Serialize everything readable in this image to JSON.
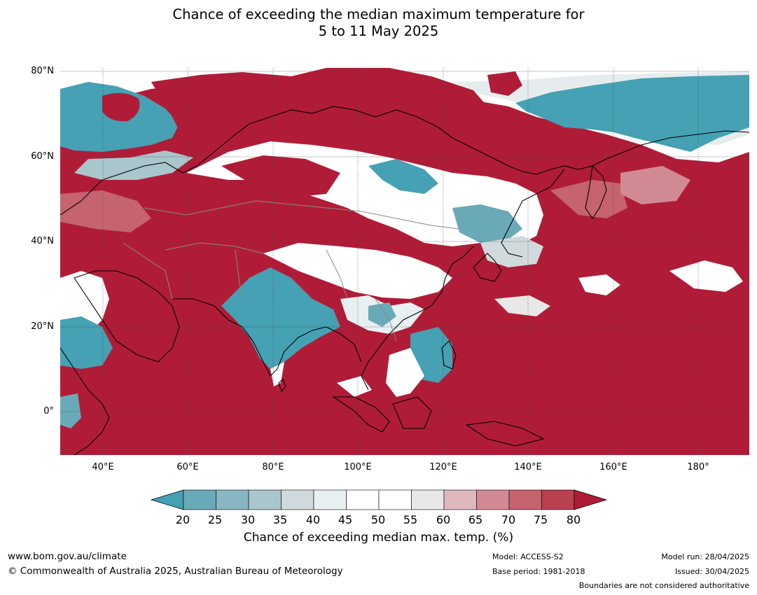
{
  "title": {
    "line1": "Chance of exceeding the median maximum temperature for",
    "line2": "5 to 11 May 2025"
  },
  "map": {
    "lat_labels": [
      "80°N",
      "60°N",
      "40°N",
      "20°N",
      "0°"
    ],
    "lon_labels": [
      "40°E",
      "60°E",
      "80°E",
      "100°E",
      "120°E",
      "140°E",
      "160°E",
      "180°"
    ],
    "colors": {
      "ocean_warm": "#b01c37",
      "cool": "#45a1b3",
      "neutral": "#ffffff",
      "coastline": "#000000",
      "border": "#8a8a8a",
      "graticule": "#444444"
    }
  },
  "colorbar": {
    "ticks": [
      "20",
      "25",
      "30",
      "35",
      "40",
      "45",
      "50",
      "55",
      "60",
      "65",
      "70",
      "75",
      "80"
    ],
    "colors": [
      "#44a0b2",
      "#6aa9b8",
      "#88b6c2",
      "#a9c6cc",
      "#d0dadc",
      "#e9f0f2",
      "#ffffff",
      "#ffffff",
      "#e8e8e8",
      "#deb8bd",
      "#d18a94",
      "#c5636f",
      "#b9404f",
      "#b01c37"
    ],
    "label": "Chance of exceeding median max. temp. (%)"
  },
  "footer": {
    "website": "www.bom.gov.au/climate",
    "copyright": "© Commonwealth of Australia 2025, Australian Bureau of Meteorology",
    "model": "Model: ACCESS-S2",
    "base_period": "Base period: 1981-2018",
    "model_run": "Model run: 28/04/2025",
    "issued": "Issued: 30/04/2025",
    "disclaimer": "Boundaries are not considered authoritative"
  }
}
